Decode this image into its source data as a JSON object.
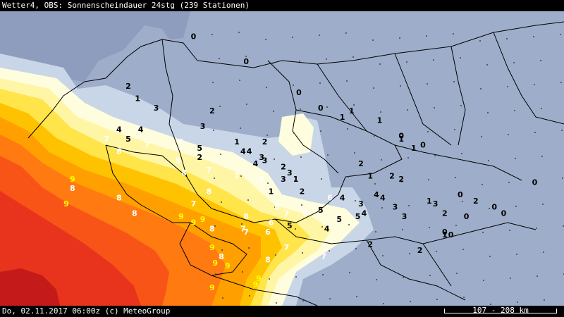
{
  "header": {
    "title": "Wetter4, OBS: Sonnenscheindauer 24stg (239 Stationen)"
  },
  "footer": {
    "datetime": "Do, 02.11.2017 06:00z (c) MeteoGroup",
    "scale": "107 - 208 km"
  },
  "legend_colors": {
    "ocean": "#8e9dbd",
    "land_0h": "#9eadc9",
    "h1": "#c8d6e8",
    "h2": "#fefede",
    "h3": "#fff6a5",
    "h4": "#ffe44a",
    "h5": "#ffc200",
    "h6": "#ffa000",
    "h7": "#ff7a10",
    "h8": "#f95417",
    "h9": "#e8341c",
    "h10": "#c41a1a"
  },
  "stations": [
    {
      "v": "0",
      "lon": 11.9,
      "lat": 57.7
    },
    {
      "v": "0",
      "lon": 5.6,
      "lat": 53.1
    },
    {
      "v": "0",
      "lon": 7.3,
      "lat": 52.3
    },
    {
      "v": "0",
      "lon": 9.0,
      "lat": 51.3
    },
    {
      "v": "0",
      "lon": 9.7,
      "lat": 50.8
    },
    {
      "v": "0",
      "lon": 12.3,
      "lat": 49.9
    },
    {
      "v": "0",
      "lon": 13.0,
      "lat": 49.6
    },
    {
      "v": "0",
      "lon": 14.2,
      "lat": 48.0
    },
    {
      "v": "0",
      "lon": 14.4,
      "lat": 47.3
    },
    {
      "v": "0",
      "lon": 13.7,
      "lat": 46.8
    },
    {
      "v": "0",
      "lon": 13.9,
      "lat": 46.7
    },
    {
      "v": "0",
      "lon": 15.3,
      "lat": 47.6
    },
    {
      "v": "0",
      "lon": 15.6,
      "lat": 47.4
    },
    {
      "v": "0",
      "lon": 16.6,
      "lat": 48.4
    },
    {
      "v": "1",
      "lon": 3.8,
      "lat": 51.1
    },
    {
      "v": "1",
      "lon": 7.0,
      "lat": 49.7
    },
    {
      "v": "1",
      "lon": 8.1,
      "lat": 48.1
    },
    {
      "v": "1",
      "lon": 8.9,
      "lat": 48.5
    },
    {
      "v": "1",
      "lon": 10.4,
      "lat": 50.5
    },
    {
      "v": "1",
      "lon": 10.7,
      "lat": 50.7
    },
    {
      "v": "1",
      "lon": 11.6,
      "lat": 50.4
    },
    {
      "v": "1",
      "lon": 12.3,
      "lat": 49.8
    },
    {
      "v": "1",
      "lon": 12.7,
      "lat": 49.5
    },
    {
      "v": "1",
      "lon": 11.3,
      "lat": 48.6
    },
    {
      "v": "1",
      "lon": 13.2,
      "lat": 47.8
    },
    {
      "v": "1",
      "lon": 13.7,
      "lat": 46.7
    },
    {
      "v": "2",
      "lon": 3.5,
      "lat": 51.5
    },
    {
      "v": "2",
      "lon": 6.2,
      "lat": 50.7
    },
    {
      "v": "2",
      "lon": 5.8,
      "lat": 49.2
    },
    {
      "v": "2",
      "lon": 7.9,
      "lat": 49.7
    },
    {
      "v": "2",
      "lon": 9.1,
      "lat": 48.1
    },
    {
      "v": "2",
      "lon": 8.5,
      "lat": 48.9
    },
    {
      "v": "2",
      "lon": 11.0,
      "lat": 49.0
    },
    {
      "v": "2",
      "lon": 12.0,
      "lat": 48.6
    },
    {
      "v": "2",
      "lon": 12.3,
      "lat": 48.5
    },
    {
      "v": "2",
      "lon": 14.7,
      "lat": 47.8
    },
    {
      "v": "2",
      "lon": 13.7,
      "lat": 47.4
    },
    {
      "v": "2",
      "lon": 11.3,
      "lat": 46.4
    },
    {
      "v": "2",
      "lon": 12.9,
      "lat": 46.2
    },
    {
      "v": "3",
      "lon": 4.4,
      "lat": 50.8
    },
    {
      "v": "3",
      "lon": 5.9,
      "lat": 50.2
    },
    {
      "v": "3",
      "lon": 7.9,
      "lat": 49.1
    },
    {
      "v": "3",
      "lon": 7.8,
      "lat": 49.2
    },
    {
      "v": "3",
      "lon": 8.7,
      "lat": 48.7
    },
    {
      "v": "3",
      "lon": 8.5,
      "lat": 48.5
    },
    {
      "v": "3",
      "lon": 11.0,
      "lat": 47.7
    },
    {
      "v": "3",
      "lon": 12.1,
      "lat": 47.6
    },
    {
      "v": "3",
      "lon": 13.4,
      "lat": 47.7
    },
    {
      "v": "3",
      "lon": 12.4,
      "lat": 47.3
    },
    {
      "v": "4",
      "lon": 3.2,
      "lat": 50.1
    },
    {
      "v": "4",
      "lon": 3.9,
      "lat": 50.1
    },
    {
      "v": "4",
      "lon": 7.2,
      "lat": 49.4
    },
    {
      "v": "4",
      "lon": 7.4,
      "lat": 49.4
    },
    {
      "v": "4",
      "lon": 7.6,
      "lat": 49.0
    },
    {
      "v": "4",
      "lon": 10.4,
      "lat": 47.9
    },
    {
      "v": "4",
      "lon": 11.5,
      "lat": 48.0
    },
    {
      "v": "4",
      "lon": 11.7,
      "lat": 47.9
    },
    {
      "v": "4",
      "lon": 11.1,
      "lat": 47.4
    },
    {
      "v": "4",
      "lon": 9.9,
      "lat": 46.9
    },
    {
      "v": "5",
      "lon": 3.5,
      "lat": 49.8
    },
    {
      "v": "5",
      "lon": 5.8,
      "lat": 49.5
    },
    {
      "v": "5",
      "lon": 9.7,
      "lat": 47.5
    },
    {
      "v": "5",
      "lon": 10.9,
      "lat": 47.3
    },
    {
      "v": "5",
      "lon": 10.3,
      "lat": 47.2
    },
    {
      "v": "5",
      "lon": 8.7,
      "lat": 47.0
    },
    {
      "v": "6",
      "lon": 5.2,
      "lat": 49.7
    },
    {
      "v": "6",
      "lon": 10.0,
      "lat": 47.9
    },
    {
      "v": "6",
      "lon": 8.3,
      "lat": 47.6
    },
    {
      "v": "6",
      "lon": 8.0,
      "lat": 46.8
    },
    {
      "v": "6",
      "lon": 8.1,
      "lat": 47.1
    },
    {
      "v": "6",
      "lon": 9.2,
      "lat": 47.4
    },
    {
      "v": "7",
      "lon": 2.8,
      "lat": 49.8
    },
    {
      "v": "7",
      "lon": 4.1,
      "lat": 49.6
    },
    {
      "v": "7",
      "lon": 6.1,
      "lat": 48.8
    },
    {
      "v": "7",
      "lon": 7.0,
      "lat": 48.6
    },
    {
      "v": "7",
      "lon": 7.8,
      "lat": 48.5
    },
    {
      "v": "7",
      "lon": 5.6,
      "lat": 47.7
    },
    {
      "v": "7",
      "lon": 7.2,
      "lat": 46.9
    },
    {
      "v": "7",
      "lon": 7.3,
      "lat": 46.8
    },
    {
      "v": "7",
      "lon": 8.6,
      "lat": 47.4
    },
    {
      "v": "7",
      "lon": 8.6,
      "lat": 46.3
    },
    {
      "v": "7",
      "lon": 9.8,
      "lat": 46.0
    },
    {
      "v": "8",
      "lon": 3.2,
      "lat": 49.4
    },
    {
      "v": "8",
      "lon": 5.1,
      "lat": 49.1
    },
    {
      "v": "8",
      "lon": 5.3,
      "lat": 48.7
    },
    {
      "v": "8",
      "lon": 6.1,
      "lat": 48.1
    },
    {
      "v": "8",
      "lon": 1.7,
      "lat": 48.2
    },
    {
      "v": "8",
      "lon": 7.3,
      "lat": 47.3
    },
    {
      "v": "8",
      "lon": 3.7,
      "lat": 47.4
    },
    {
      "v": "8",
      "lon": 6.2,
      "lat": 46.9
    },
    {
      "v": "8",
      "lon": 6.5,
      "lat": 46.0
    },
    {
      "v": "8",
      "lon": 8.0,
      "lat": 45.9
    },
    {
      "v": "8",
      "lon": 3.2,
      "lat": 47.9
    },
    {
      "v": "9",
      "lon": 1.7,
      "lat": 48.5
    },
    {
      "v": "9",
      "lon": 1.5,
      "lat": 47.7
    },
    {
      "v": "9",
      "lon": 5.2,
      "lat": 47.3
    },
    {
      "v": "9",
      "lon": 5.6,
      "lat": 47.1
    },
    {
      "v": "9",
      "lon": 5.9,
      "lat": 47.2
    },
    {
      "v": "9",
      "lon": 6.2,
      "lat": 46.3
    },
    {
      "v": "9",
      "lon": 6.7,
      "lat": 45.7
    },
    {
      "v": "9",
      "lon": 6.3,
      "lat": 45.8
    },
    {
      "v": "9",
      "lon": 7.7,
      "lat": 45.3
    },
    {
      "v": "9",
      "lon": 6.2,
      "lat": 45.0
    },
    {
      "v": "9",
      "lon": 7.6,
      "lat": 45.1
    }
  ],
  "bright_spot_labels": [
    "1",
    "2",
    "1",
    "1"
  ]
}
